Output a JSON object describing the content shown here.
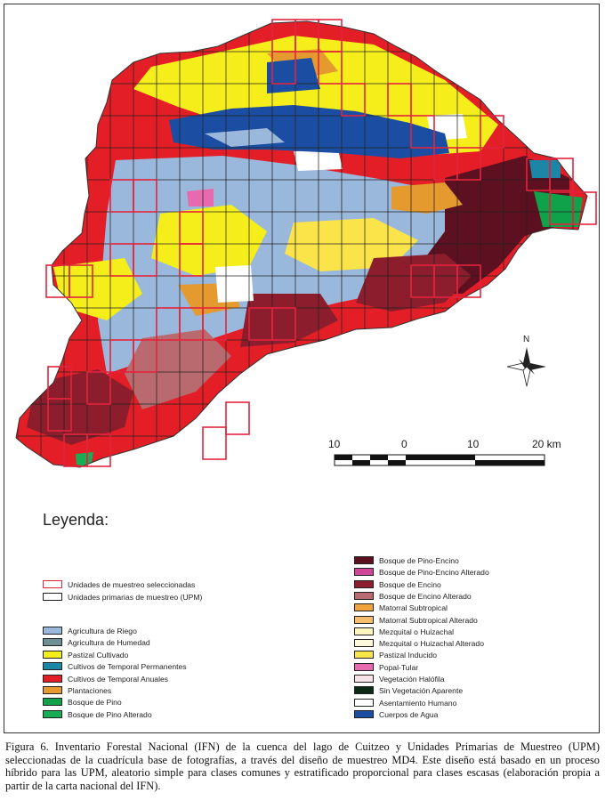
{
  "colors": {
    "agricultura_riego": "#9ab7dc",
    "agricultura_humedad": "#6e8f93",
    "pastizal_cultivado": "#f5ee1a",
    "cultivos_permanentes": "#1b86a6",
    "cultivos_anuales": "#e41e26",
    "plantaciones": "#e59a2f",
    "bosque_pino": "#0fa24a",
    "bosque_pino_alterado": "#17ad55",
    "bosque_pino_encino": "#5c1020",
    "bosque_pino_encino_alterado": "#d0469a",
    "bosque_encino": "#8b1d2c",
    "bosque_encino_alterado": "#b86a6f",
    "matorral_subtropical": "#f0a33a",
    "matorral_subtropical_alterado": "#f6be6c",
    "mezquital": "#fff3c0",
    "mezquital_alterado": "#fff8dc",
    "pastizal_inducido": "#fbe44a",
    "popal_tular": "#e86aae",
    "vegetacion_halofila": "#f7e2ea",
    "sin_vegetacion": "#0b2a16",
    "asentamiento": "#ffffff",
    "cuerpos_agua": "#1b4ea3",
    "upm_selected": "#e2243c",
    "upm_grid": "#222222"
  },
  "map": {
    "scalebar": {
      "labels": [
        "10",
        "0",
        "10",
        "20 km"
      ]
    },
    "north_label": "N"
  },
  "legend": {
    "title": "Leyenda:",
    "sampling": [
      {
        "label": "Unidades de muestreo seleccionadas",
        "color": "#e2243c",
        "outline": true
      },
      {
        "label": "Unidades primarias de muestreo (UPM)",
        "color": "#222222",
        "outline": true
      }
    ],
    "left": [
      {
        "label": "Agricultura de Riego",
        "color": "#9ab7dc"
      },
      {
        "label": "Agricultura de Humedad",
        "color": "#6e8f93"
      },
      {
        "label": "Pastizal Cultivado",
        "color": "#f5ee1a"
      },
      {
        "label": "Cultivos de Temporal Permanentes",
        "color": "#1b86a6"
      },
      {
        "label": "Cultivos de Temporal Anuales",
        "color": "#e41e26"
      },
      {
        "label": "Plantaciones",
        "color": "#e59a2f"
      },
      {
        "label": "Bosque de Pino",
        "color": "#0fa24a"
      },
      {
        "label": "Bosque de Pino Alterado",
        "color": "#17ad55"
      }
    ],
    "right": [
      {
        "label": "Bosque de Pino-Encino",
        "color": "#5c1020"
      },
      {
        "label": "Bosque de Pino-Encino Alterado",
        "color": "#d0469a"
      },
      {
        "label": "Bosque de Encino",
        "color": "#8b1d2c"
      },
      {
        "label": "Bosque de Encino Alterado",
        "color": "#b86a6f"
      },
      {
        "label": "Matorral Subtropical",
        "color": "#f0a33a"
      },
      {
        "label": "Matorral Subtropical Alterado",
        "color": "#f6be6c"
      },
      {
        "label": "Mezquital o Huizachal",
        "color": "#fff3c0"
      },
      {
        "label": "Mezquital o Huizachal Alterado",
        "color": "#fff8dc"
      },
      {
        "label": "Pastizal Inducido",
        "color": "#fbe44a"
      },
      {
        "label": "Popal-Tular",
        "color": "#e86aae"
      },
      {
        "label": "Vegetación Halófila",
        "color": "#f7e2ea"
      },
      {
        "label": "Sin Vegetación Aparente",
        "color": "#0b2a16"
      },
      {
        "label": "Asentamiento Humano",
        "color": "#ffffff"
      },
      {
        "label": "Cuerpos de Agua",
        "color": "#1b4ea3"
      }
    ]
  },
  "caption": "Figura 6. Inventario Forestal Nacional (IFN) de la cuenca del lago de Cuitzeo y Unidades Primarias de Muestreo (UPM) seleccionadas de la cuadrícula base de fotografías, a través del diseño de muestreo MD4. Este diseño está basado en un proceso híbrido para las UPM, aleatorio simple para clases comunes y estratificado proporcional para clases escasas (elaboración propia a partir de la carta nacional del IFN)."
}
